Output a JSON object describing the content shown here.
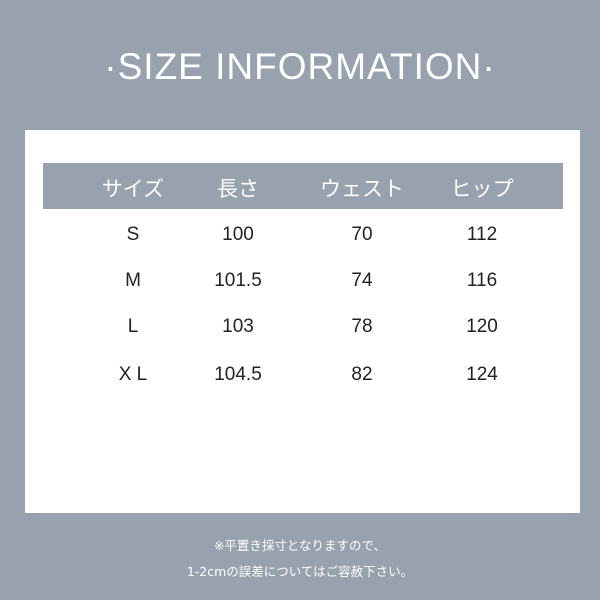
{
  "title": "·SIZE INFORMATION·",
  "table": {
    "headers": [
      "サイズ",
      "長さ",
      "ウェスト",
      "ヒップ"
    ],
    "rows": [
      [
        "S",
        "100",
        "70",
        "112"
      ],
      [
        "M",
        "101.5",
        "74",
        "116"
      ],
      [
        "L",
        "103",
        "78",
        "120"
      ],
      [
        "X L",
        "104.5",
        "82",
        "124"
      ]
    ]
  },
  "notes": [
    "※平置き採寸となりますので、",
    "1-2cmの誤差についてはご容赦下さい。"
  ],
  "colors": {
    "background": "#98a1ae",
    "header_bar": "#98a1ae",
    "card": "#ffffff"
  }
}
